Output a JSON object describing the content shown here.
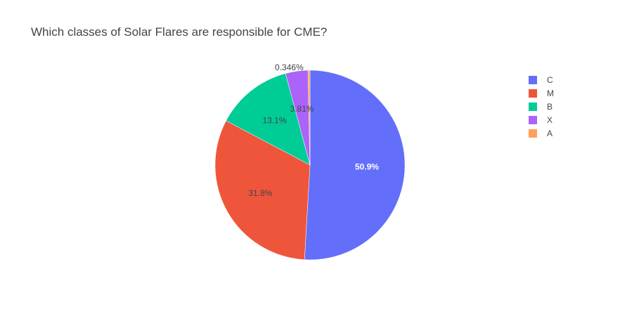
{
  "chart_data": {
    "type": "pie",
    "title": "Which classes of Solar Flares are responsible for CME?",
    "categories": [
      "C",
      "M",
      "B",
      "X",
      "A"
    ],
    "values": [
      50.9,
      31.8,
      13.1,
      3.81,
      0.346
    ],
    "labels": [
      "50.9%",
      "31.8%",
      "13.1%",
      "3.81%",
      "0.346%"
    ],
    "colors": [
      "#636efa",
      "#ef553b",
      "#00cc96",
      "#ab63fa",
      "#ffa15a"
    ],
    "label_colors": [
      "#ffffff",
      "#444444",
      "#444444",
      "#444444",
      "#444444"
    ],
    "legend_placement": "top-right",
    "direction": "clockwise",
    "start_angle_deg": 90
  }
}
